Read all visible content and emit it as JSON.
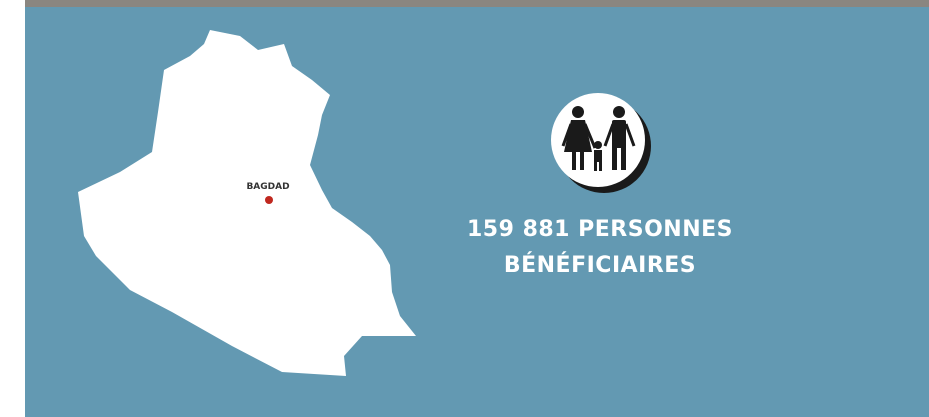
{
  "map": {
    "city_label": "BAGDAD"
  },
  "stat": {
    "lines": [
      "159 881 PERSONNES",
      "BÉNÉFICIAIRES"
    ]
  }
}
